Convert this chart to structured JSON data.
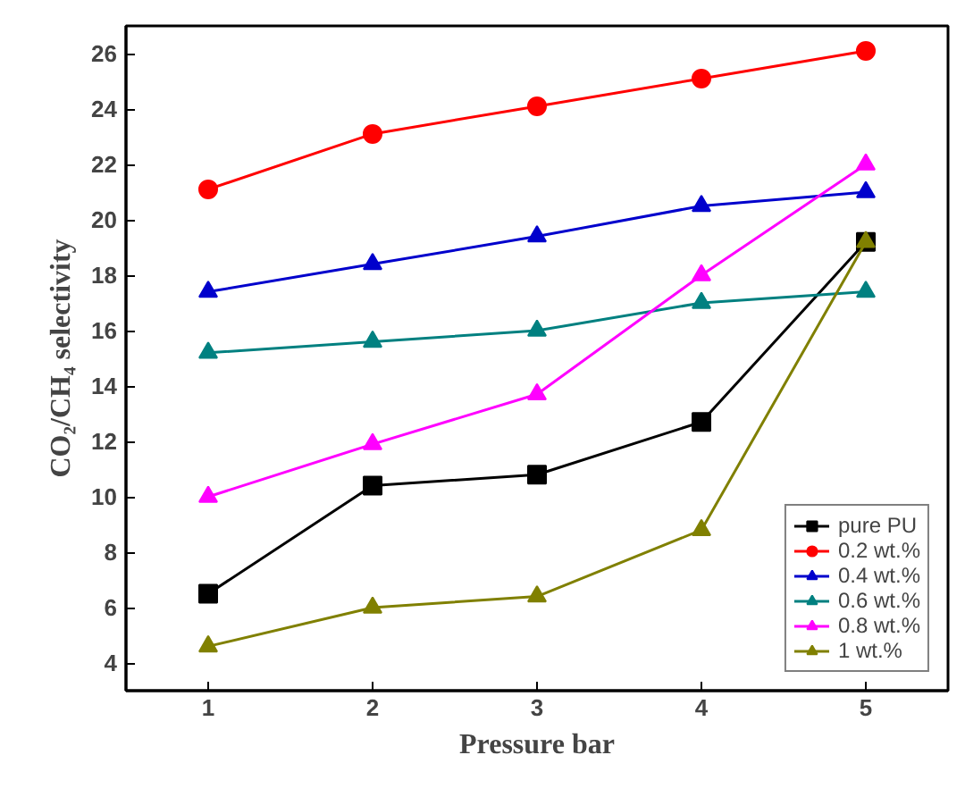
{
  "chart_data": {
    "type": "line",
    "xlabel": "Pressure bar",
    "ylabel": "CO₂/CH₄ selectivity",
    "x": [
      1,
      2,
      3,
      4,
      5
    ],
    "xlim": [
      0.5,
      5.5
    ],
    "ylim": [
      3,
      27
    ],
    "xticks": [
      1,
      2,
      3,
      4,
      5
    ],
    "yticks": [
      4,
      6,
      8,
      10,
      12,
      14,
      16,
      18,
      20,
      22,
      24,
      26
    ],
    "grid": false,
    "legend": "bottom right",
    "series": [
      {
        "name": "pure PU",
        "color": "#000000",
        "marker": "square",
        "values": [
          6.5,
          10.4,
          10.8,
          12.7,
          19.2
        ]
      },
      {
        "name": "0.2 wt.%",
        "color": "#ff0000",
        "marker": "circle",
        "values": [
          21.1,
          23.1,
          24.1,
          25.1,
          26.1
        ]
      },
      {
        "name": "0.4 wt.%",
        "color": "#0000cc",
        "marker": "triangle",
        "values": [
          17.4,
          18.4,
          19.4,
          20.5,
          21.0
        ]
      },
      {
        "name": "0.6 wt.%",
        "color": "#008080",
        "marker": "triangle",
        "values": [
          15.2,
          15.6,
          16.0,
          17.0,
          17.4
        ]
      },
      {
        "name": "0.8 wt.%",
        "color": "#ff00ff",
        "marker": "triangle",
        "values": [
          10.0,
          11.9,
          13.7,
          18.0,
          22.0
        ]
      },
      {
        "name": "1 wt.%",
        "color": "#808000",
        "marker": "triangle",
        "values": [
          4.6,
          6.0,
          6.4,
          8.8,
          19.2
        ]
      }
    ]
  }
}
